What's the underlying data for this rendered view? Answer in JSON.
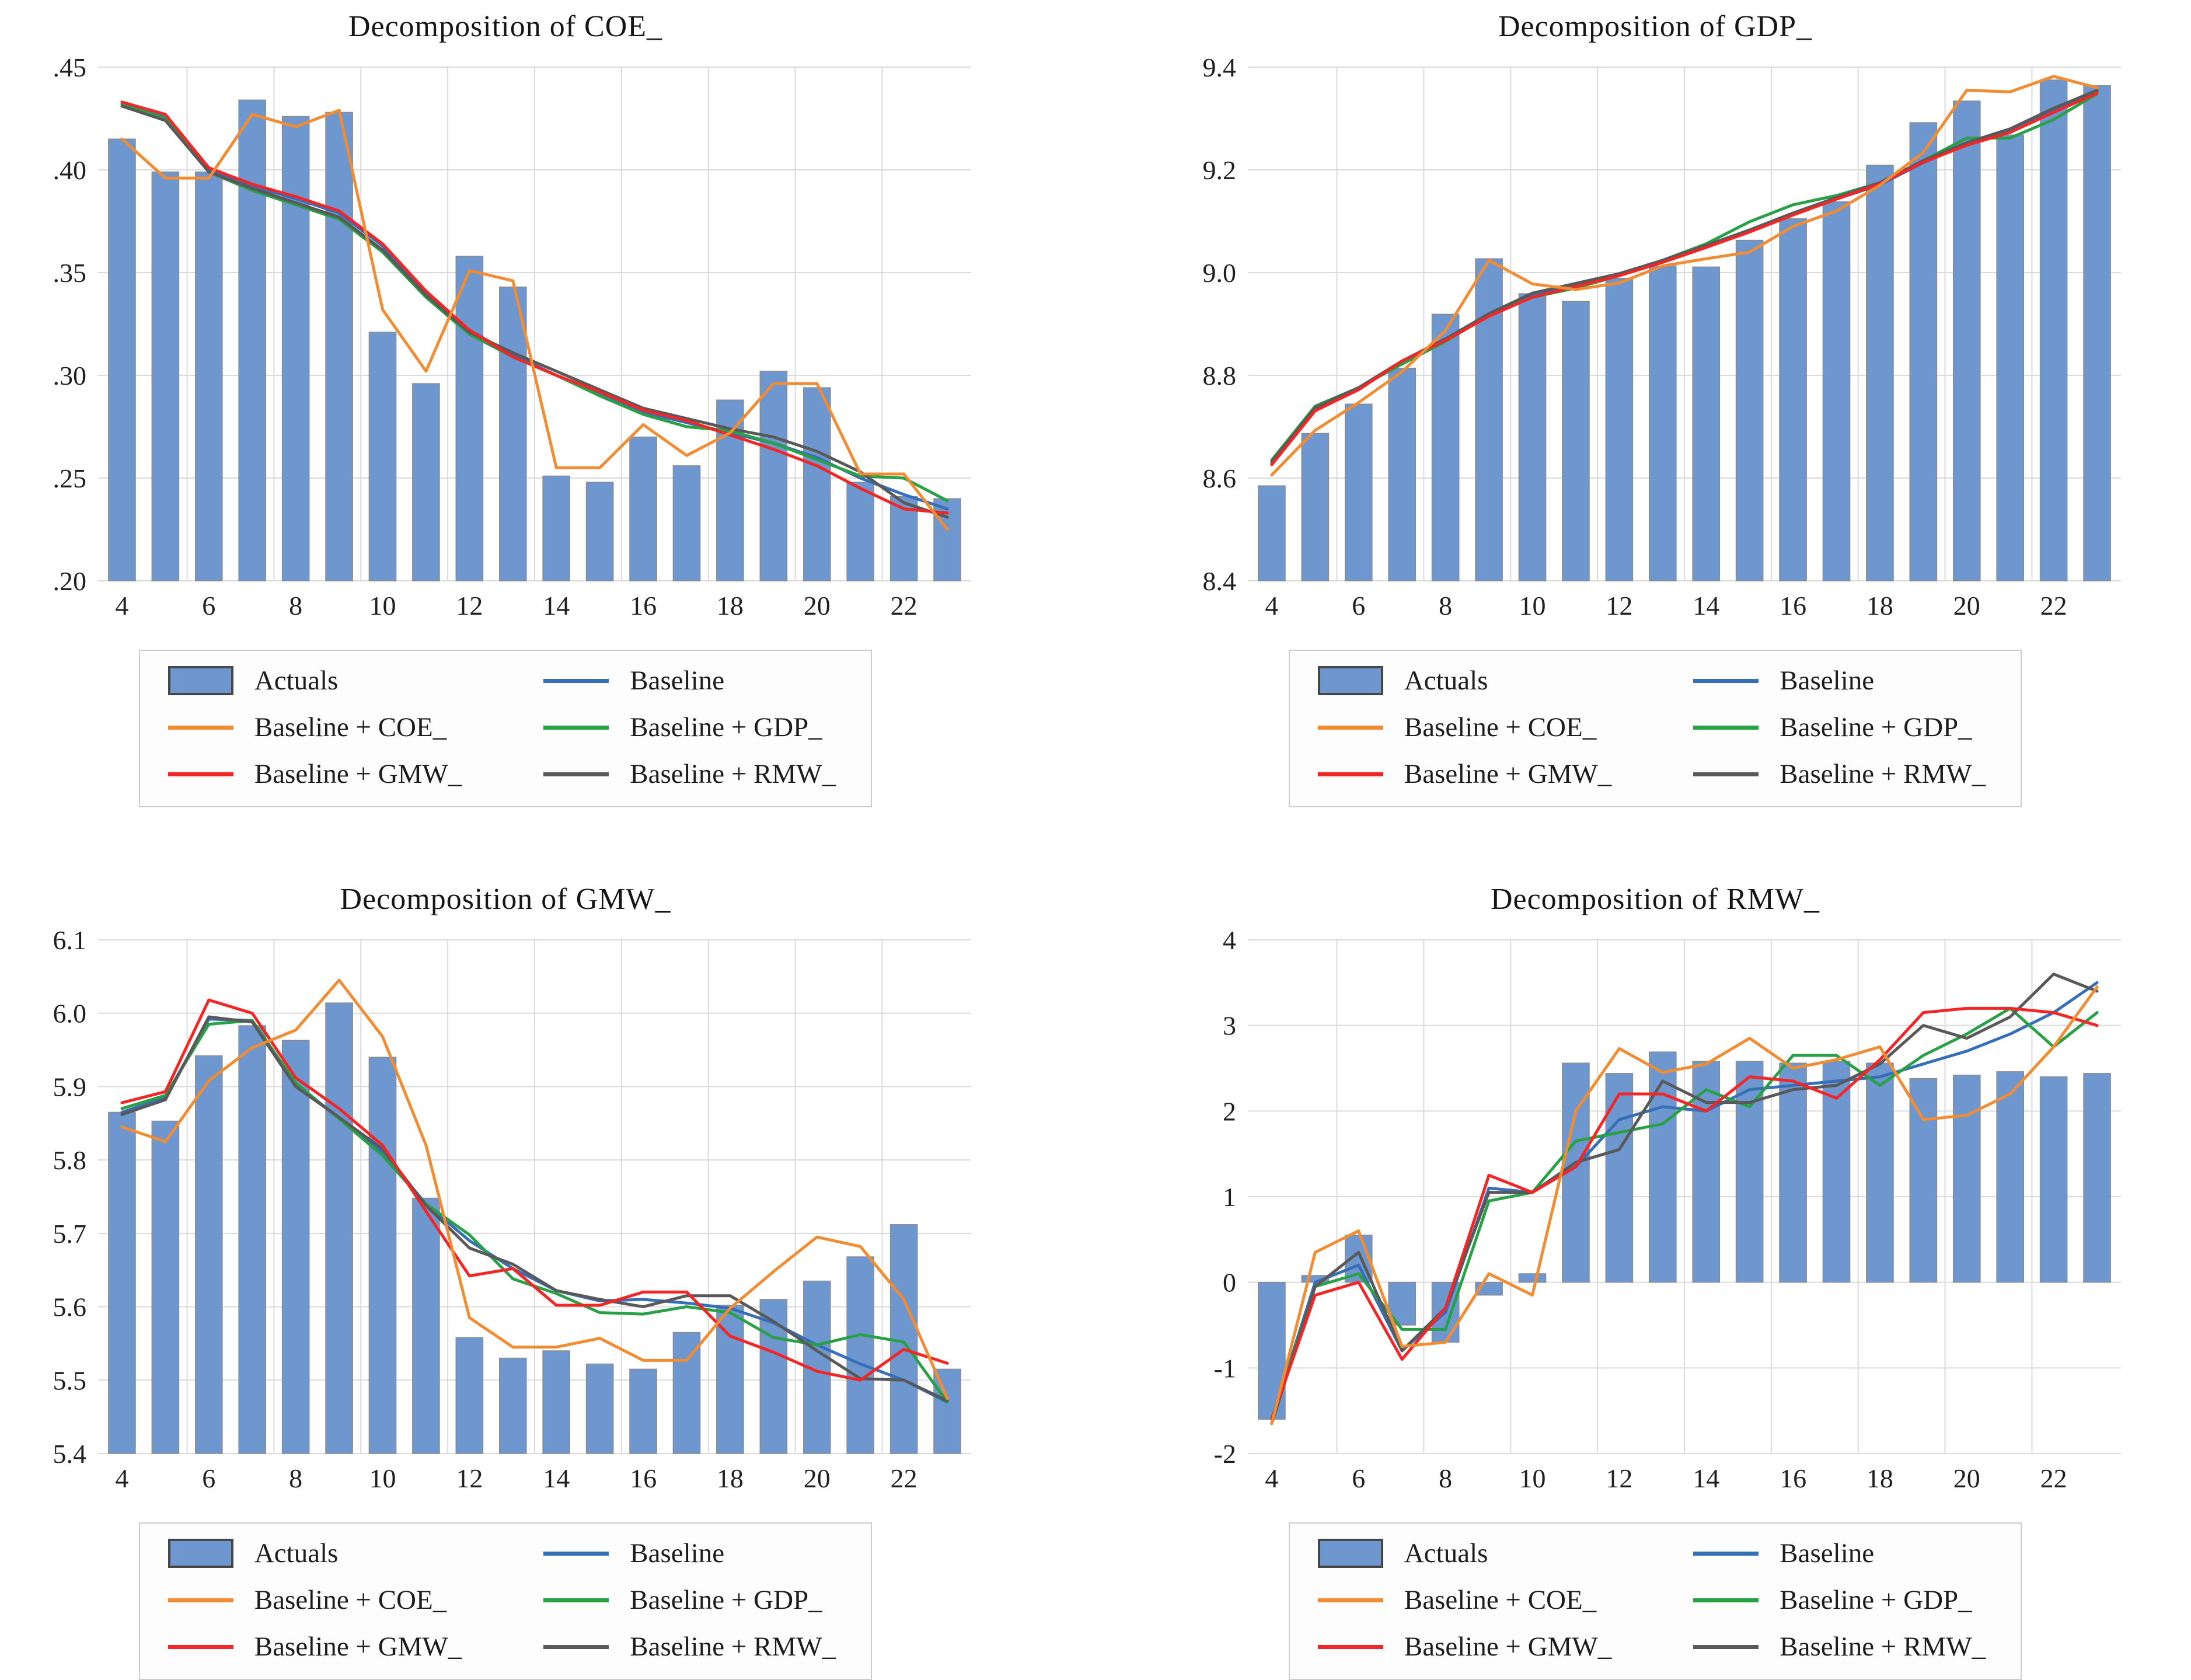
{
  "colors": {
    "bar_fill": "#6D97CE",
    "bar_edge": "#8C8C8C",
    "bar_border": "#474747",
    "grid": "#DADADA",
    "axis_text": "#1F1F1F",
    "title_text": "#161616",
    "legend_border": "#CCCCCC",
    "baseline": "#376EB8",
    "coe": "#F28C32",
    "gdp": "#28A046",
    "gmw": "#F42525",
    "rmw": "#595959"
  },
  "legend": {
    "items": [
      {
        "swatch": "bar",
        "color_key": "bar_fill",
        "label": "Actuals"
      },
      {
        "swatch": "line",
        "color_key": "baseline",
        "label": "Baseline"
      },
      {
        "swatch": "line",
        "color_key": "coe",
        "label": "Baseline + COE_"
      },
      {
        "swatch": "line",
        "color_key": "gdp",
        "label": "Baseline + GDP_"
      },
      {
        "swatch": "line",
        "color_key": "gmw",
        "label": "Baseline + GMW_"
      },
      {
        "swatch": "line",
        "color_key": "rmw",
        "label": "Baseline + RMW_"
      }
    ]
  },
  "chart_data": [
    {
      "type": "bar",
      "title": "Decomposition of COE_",
      "xlabel": "",
      "ylabel": "",
      "x": [
        4,
        5,
        6,
        7,
        8,
        9,
        10,
        11,
        12,
        13,
        14,
        15,
        16,
        17,
        18,
        19,
        20,
        21,
        22,
        23
      ],
      "xtick_labels": [
        4,
        6,
        8,
        10,
        12,
        14,
        16,
        18,
        20,
        22
      ],
      "grid_x": [
        5.5,
        7.5,
        9.5,
        11.5,
        13.5,
        15.5,
        17.5,
        19.5,
        21.5
      ],
      "ylim": [
        0.2,
        0.45
      ],
      "bar_base": 0.2,
      "ytick_values": [
        0.2,
        0.25,
        0.3,
        0.35,
        0.4,
        0.45
      ],
      "ytick_labels": [
        ".20",
        ".25",
        ".30",
        ".35",
        ".40",
        ".45"
      ],
      "actuals": [
        0.415,
        0.399,
        0.399,
        0.434,
        0.426,
        0.428,
        0.321,
        0.296,
        0.358,
        0.343,
        0.251,
        0.248,
        0.27,
        0.256,
        0.288,
        0.302,
        0.294,
        0.248,
        0.241,
        0.24
      ],
      "series": [
        {
          "name": "Baseline",
          "color_key": "baseline",
          "values": [
            0.432,
            0.426,
            0.4,
            0.392,
            0.386,
            0.379,
            0.363,
            0.34,
            0.322,
            0.31,
            0.3,
            0.291,
            0.282,
            0.277,
            0.272,
            0.267,
            0.26,
            0.25,
            0.242,
            0.235
          ]
        },
        {
          "name": "Baseline + COE_",
          "color_key": "coe",
          "values": [
            0.415,
            0.396,
            0.396,
            0.427,
            0.421,
            0.429,
            0.332,
            0.302,
            0.351,
            0.346,
            0.255,
            0.255,
            0.276,
            0.261,
            0.272,
            0.296,
            0.296,
            0.252,
            0.252,
            0.225
          ]
        },
        {
          "name": "Baseline + GDP_",
          "color_key": "gdp",
          "values": [
            0.432,
            0.425,
            0.399,
            0.39,
            0.383,
            0.376,
            0.36,
            0.338,
            0.32,
            0.309,
            0.3,
            0.29,
            0.281,
            0.275,
            0.273,
            0.267,
            0.259,
            0.251,
            0.25,
            0.239
          ]
        },
        {
          "name": "Baseline + GMW_",
          "color_key": "gmw",
          "values": [
            0.433,
            0.427,
            0.401,
            0.393,
            0.387,
            0.38,
            0.364,
            0.341,
            0.322,
            0.309,
            0.3,
            0.292,
            0.283,
            0.278,
            0.271,
            0.264,
            0.256,
            0.245,
            0.235,
            0.233
          ]
        },
        {
          "name": "Baseline + RMW_",
          "color_key": "rmw",
          "values": [
            0.431,
            0.424,
            0.399,
            0.391,
            0.384,
            0.377,
            0.361,
            0.339,
            0.321,
            0.311,
            0.302,
            0.293,
            0.284,
            0.279,
            0.274,
            0.27,
            0.263,
            0.253,
            0.238,
            0.231
          ]
        }
      ]
    },
    {
      "type": "bar",
      "title": "Decomposition of GDP_",
      "xlabel": "",
      "ylabel": "",
      "x": [
        4,
        5,
        6,
        7,
        8,
        9,
        10,
        11,
        12,
        13,
        14,
        15,
        16,
        17,
        18,
        19,
        20,
        21,
        22,
        23
      ],
      "xtick_labels": [
        4,
        6,
        8,
        10,
        12,
        14,
        16,
        18,
        20,
        22
      ],
      "grid_x": [
        5.5,
        7.5,
        9.5,
        11.5,
        13.5,
        15.5,
        17.5,
        19.5,
        21.5
      ],
      "ylim": [
        8.4,
        9.4
      ],
      "bar_base": 8.4,
      "ytick_values": [
        8.4,
        8.6,
        8.8,
        9.0,
        9.2,
        9.4
      ],
      "ytick_labels": [
        "8.4",
        "8.6",
        "8.8",
        "9.0",
        "9.2",
        "9.4"
      ],
      "actuals": [
        8.585,
        8.687,
        8.744,
        8.814,
        8.919,
        9.027,
        8.959,
        8.944,
        8.989,
        9.013,
        9.011,
        9.063,
        9.105,
        9.138,
        9.209,
        9.292,
        9.334,
        9.268,
        9.375,
        9.364
      ],
      "series": [
        {
          "name": "Baseline",
          "color_key": "baseline",
          "values": [
            8.629,
            8.735,
            8.774,
            8.825,
            8.87,
            8.919,
            8.958,
            8.976,
            8.995,
            9.022,
            9.051,
            9.081,
            9.114,
            9.143,
            9.171,
            9.214,
            9.25,
            9.277,
            9.317,
            9.352
          ]
        },
        {
          "name": "Baseline + COE_",
          "color_key": "coe",
          "values": [
            8.606,
            8.693,
            8.747,
            8.807,
            8.887,
            9.024,
            8.978,
            8.967,
            8.98,
            9.013,
            9.027,
            9.04,
            9.09,
            9.12,
            9.17,
            9.234,
            9.355,
            9.352,
            9.382,
            9.36
          ]
        },
        {
          "name": "Baseline + GDP_",
          "color_key": "gdp",
          "values": [
            8.635,
            8.74,
            8.776,
            8.822,
            8.866,
            8.917,
            8.952,
            8.97,
            8.994,
            9.024,
            9.056,
            9.099,
            9.132,
            9.15,
            9.175,
            9.218,
            9.262,
            9.262,
            9.298,
            9.348
          ]
        },
        {
          "name": "Baseline + GMW_",
          "color_key": "gmw",
          "values": [
            8.626,
            8.731,
            8.772,
            8.828,
            8.868,
            8.915,
            8.952,
            8.973,
            8.994,
            9.02,
            9.049,
            9.079,
            9.112,
            9.143,
            9.173,
            9.215,
            9.248,
            9.273,
            9.312,
            9.349
          ]
        },
        {
          "name": "Baseline + RMW_",
          "color_key": "rmw",
          "values": [
            8.632,
            8.737,
            8.776,
            8.828,
            8.871,
            8.92,
            8.96,
            8.979,
            8.998,
            9.024,
            9.053,
            9.083,
            9.116,
            9.146,
            9.175,
            9.218,
            9.253,
            9.28,
            9.32,
            9.355
          ]
        }
      ]
    },
    {
      "type": "bar",
      "title": "Decomposition of GMW_",
      "xlabel": "",
      "ylabel": "",
      "x": [
        4,
        5,
        6,
        7,
        8,
        9,
        10,
        11,
        12,
        13,
        14,
        15,
        16,
        17,
        18,
        19,
        20,
        21,
        22,
        23
      ],
      "xtick_labels": [
        4,
        6,
        8,
        10,
        12,
        14,
        16,
        18,
        20,
        22
      ],
      "grid_x": [
        5.5,
        7.5,
        9.5,
        11.5,
        13.5,
        15.5,
        17.5,
        19.5,
        21.5
      ],
      "ylim": [
        5.4,
        6.1
      ],
      "bar_base": 5.4,
      "ytick_values": [
        5.4,
        5.5,
        5.6,
        5.7,
        5.8,
        5.9,
        6.0,
        6.1
      ],
      "ytick_labels": [
        "5.4",
        "5.5",
        "5.6",
        "5.7",
        "5.8",
        "5.9",
        "6.0",
        "6.1"
      ],
      "actuals": [
        5.865,
        5.853,
        5.942,
        5.983,
        5.963,
        6.014,
        5.94,
        5.748,
        5.558,
        5.53,
        5.54,
        5.522,
        5.515,
        5.565,
        5.602,
        5.61,
        5.635,
        5.668,
        5.712,
        5.515
      ],
      "series": [
        {
          "name": "Baseline",
          "color_key": "baseline",
          "values": [
            5.865,
            5.885,
            5.992,
            5.99,
            5.902,
            5.858,
            5.81,
            5.74,
            5.69,
            5.652,
            5.622,
            5.608,
            5.61,
            5.605,
            5.598,
            5.578,
            5.548,
            5.522,
            5.5,
            5.47
          ]
        },
        {
          "name": "Baseline + COE_",
          "color_key": "coe",
          "values": [
            5.845,
            5.825,
            5.908,
            5.953,
            5.977,
            6.045,
            5.968,
            5.82,
            5.585,
            5.545,
            5.545,
            5.557,
            5.527,
            5.527,
            5.598,
            5.648,
            5.695,
            5.682,
            5.61,
            5.475
          ]
        },
        {
          "name": "Baseline + GDP_",
          "color_key": "gdp",
          "values": [
            5.87,
            5.888,
            5.985,
            5.99,
            5.905,
            5.856,
            5.806,
            5.74,
            5.698,
            5.638,
            5.618,
            5.592,
            5.59,
            5.6,
            5.592,
            5.558,
            5.548,
            5.562,
            5.552,
            5.47
          ]
        },
        {
          "name": "Baseline + GMW_",
          "color_key": "gmw",
          "values": [
            5.878,
            5.893,
            6.018,
            6.0,
            5.912,
            5.87,
            5.82,
            5.73,
            5.642,
            5.652,
            5.602,
            5.602,
            5.62,
            5.62,
            5.56,
            5.538,
            5.512,
            5.5,
            5.542,
            5.523
          ]
        },
        {
          "name": "Baseline + RMW_",
          "color_key": "rmw",
          "values": [
            5.862,
            5.882,
            5.995,
            5.988,
            5.9,
            5.858,
            5.815,
            5.738,
            5.68,
            5.658,
            5.622,
            5.61,
            5.6,
            5.615,
            5.615,
            5.58,
            5.54,
            5.502,
            5.5,
            5.472
          ]
        }
      ]
    },
    {
      "type": "bar",
      "title": "Decomposition of RMW_",
      "xlabel": "",
      "ylabel": "",
      "x": [
        4,
        5,
        6,
        7,
        8,
        9,
        10,
        11,
        12,
        13,
        14,
        15,
        16,
        17,
        18,
        19,
        20,
        21,
        22,
        23
      ],
      "xtick_labels": [
        4,
        6,
        8,
        10,
        12,
        14,
        16,
        18,
        20,
        22
      ],
      "grid_x": [
        5.5,
        7.5,
        9.5,
        11.5,
        13.5,
        15.5,
        17.5,
        19.5,
        21.5
      ],
      "ylim": [
        -2,
        4
      ],
      "bar_base": 0,
      "ytick_values": [
        -2,
        -1,
        0,
        1,
        2,
        3,
        4
      ],
      "ytick_labels": [
        "-2",
        "-1",
        "0",
        "1",
        "2",
        "3",
        "4"
      ],
      "actuals": [
        -1.6,
        0.08,
        0.55,
        -0.5,
        -0.7,
        -0.15,
        0.1,
        2.56,
        2.44,
        2.69,
        2.58,
        2.58,
        2.56,
        2.58,
        2.56,
        2.38,
        2.42,
        2.46,
        2.4,
        2.44
      ],
      "series": [
        {
          "name": "Baseline",
          "color_key": "baseline",
          "values": [
            -1.6,
            0.0,
            0.2,
            -0.8,
            -0.35,
            1.1,
            1.05,
            1.35,
            1.9,
            2.05,
            2.0,
            2.25,
            2.3,
            2.35,
            2.4,
            2.55,
            2.7,
            2.9,
            3.15,
            3.5
          ]
        },
        {
          "name": "Baseline + COE_",
          "color_key": "coe",
          "values": [
            -1.65,
            0.35,
            0.6,
            -0.75,
            -0.7,
            0.1,
            -0.15,
            2.0,
            2.73,
            2.45,
            2.55,
            2.85,
            2.5,
            2.6,
            2.75,
            1.9,
            1.95,
            2.2,
            2.75,
            3.45
          ]
        },
        {
          "name": "Baseline + GDP_",
          "color_key": "gdp",
          "values": [
            -1.6,
            -0.05,
            0.1,
            -0.55,
            -0.55,
            0.95,
            1.05,
            1.65,
            1.75,
            1.85,
            2.25,
            2.05,
            2.65,
            2.65,
            2.3,
            2.65,
            2.9,
            3.2,
            2.75,
            3.15
          ]
        },
        {
          "name": "Baseline + GMW_",
          "color_key": "gmw",
          "values": [
            -1.6,
            -0.15,
            0.0,
            -0.9,
            -0.3,
            1.25,
            1.05,
            1.35,
            2.2,
            2.2,
            2.0,
            2.4,
            2.35,
            2.15,
            2.6,
            3.15,
            3.2,
            3.2,
            3.15,
            3.0
          ]
        },
        {
          "name": "Baseline + RMW_",
          "color_key": "rmw",
          "values": [
            -1.65,
            -0.05,
            0.35,
            -0.8,
            -0.3,
            1.05,
            1.05,
            1.4,
            1.55,
            2.35,
            2.1,
            2.1,
            2.25,
            2.3,
            2.55,
            3.0,
            2.85,
            3.1,
            3.6,
            3.4
          ]
        }
      ]
    }
  ]
}
